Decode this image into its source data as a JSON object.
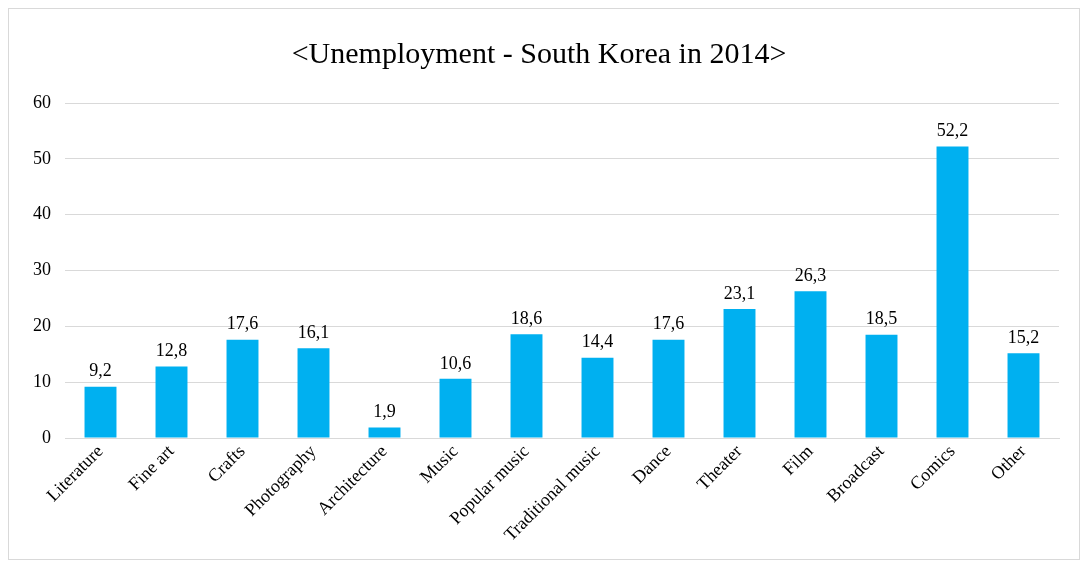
{
  "chart_data": {
    "type": "bar",
    "title": "<Unemployment - South Korea in 2014>",
    "categories": [
      "Literature",
      "Fine art",
      "Crafts",
      "Photography",
      "Architecture",
      "Music",
      "Popular music",
      "Traditional music",
      "Dance",
      "Theater",
      "Film",
      "Broadcast",
      "Comics",
      "Other"
    ],
    "values": [
      9.2,
      12.8,
      17.6,
      16.1,
      1.9,
      10.6,
      18.6,
      14.4,
      17.6,
      23.1,
      26.3,
      18.5,
      52.2,
      15.2
    ],
    "value_labels": [
      "9,2",
      "12,8",
      "17,6",
      "16,1",
      "1,9",
      "10,6",
      "18,6",
      "14,4",
      "17,6",
      "23,1",
      "26,3",
      "18,5",
      "52,2",
      "15,2"
    ],
    "color": "#00b0f0",
    "ylim": [
      0,
      60
    ],
    "yticks": [
      0,
      10,
      20,
      30,
      40,
      50,
      60
    ],
    "grid": "y",
    "legend": false
  }
}
